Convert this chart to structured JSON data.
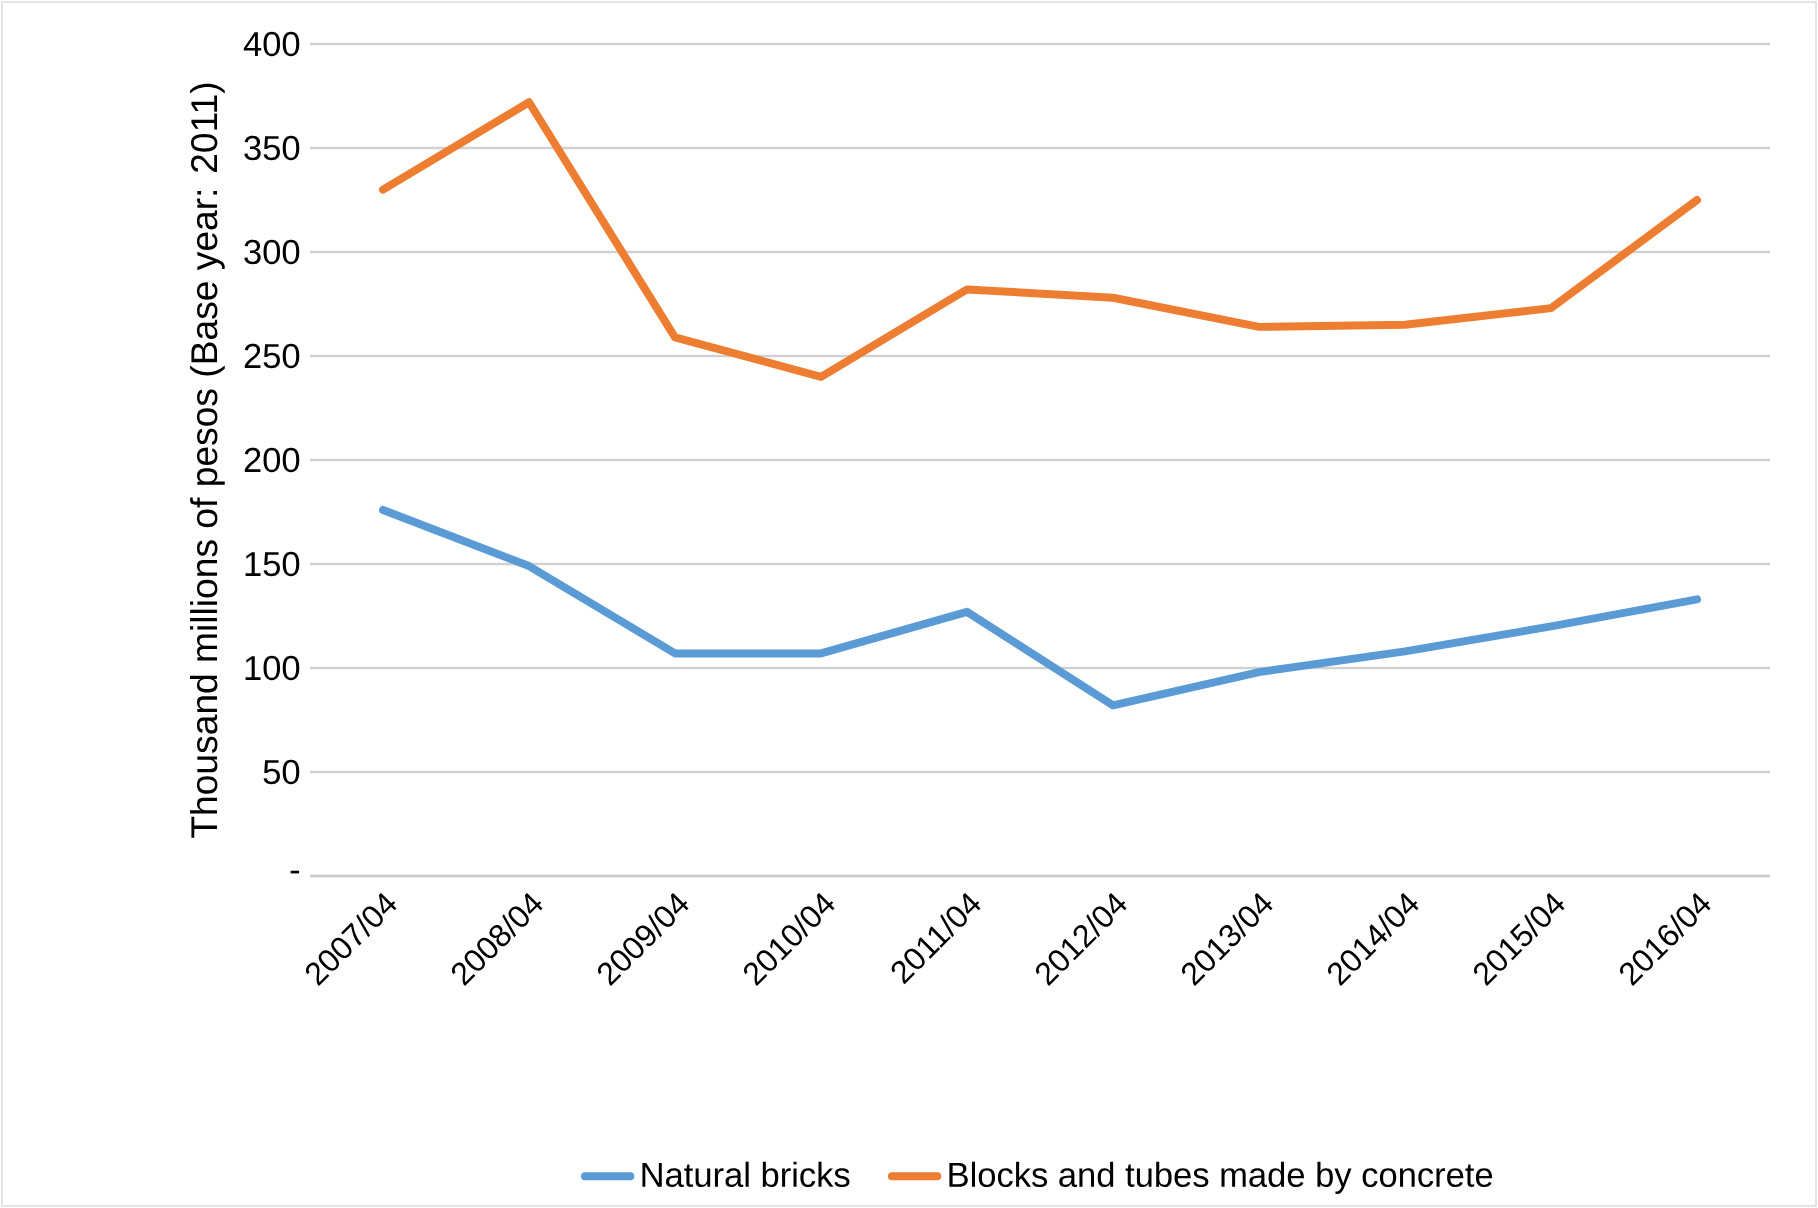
{
  "chart_data": {
    "type": "line",
    "ylabel": "Thousand millions of pesos (Base year: 2011)",
    "categories": [
      "2007/04",
      "2008/04",
      "2009/04",
      "2010/04",
      "2011/04",
      "2012/04",
      "2013/04",
      "2014/04",
      "2015/04",
      "2016/04"
    ],
    "series": [
      {
        "name": "Natural bricks",
        "color": "#5b9bd5",
        "values": [
          176,
          149,
          107,
          107,
          127,
          82,
          98,
          108,
          120,
          133
        ]
      },
      {
        "name": "Blocks and tubes made by concrete",
        "color": "#ed7d31",
        "values": [
          330,
          372,
          259,
          240,
          282,
          278,
          264,
          265,
          273,
          325
        ]
      }
    ],
    "ylim": [
      0,
      400
    ],
    "yticks": [
      {
        "value": 0,
        "label": "-"
      },
      50,
      100,
      150,
      200,
      250,
      300,
      350,
      400
    ],
    "grid": "y",
    "legend": "bottom",
    "marker": "none",
    "line_style": "solid"
  }
}
